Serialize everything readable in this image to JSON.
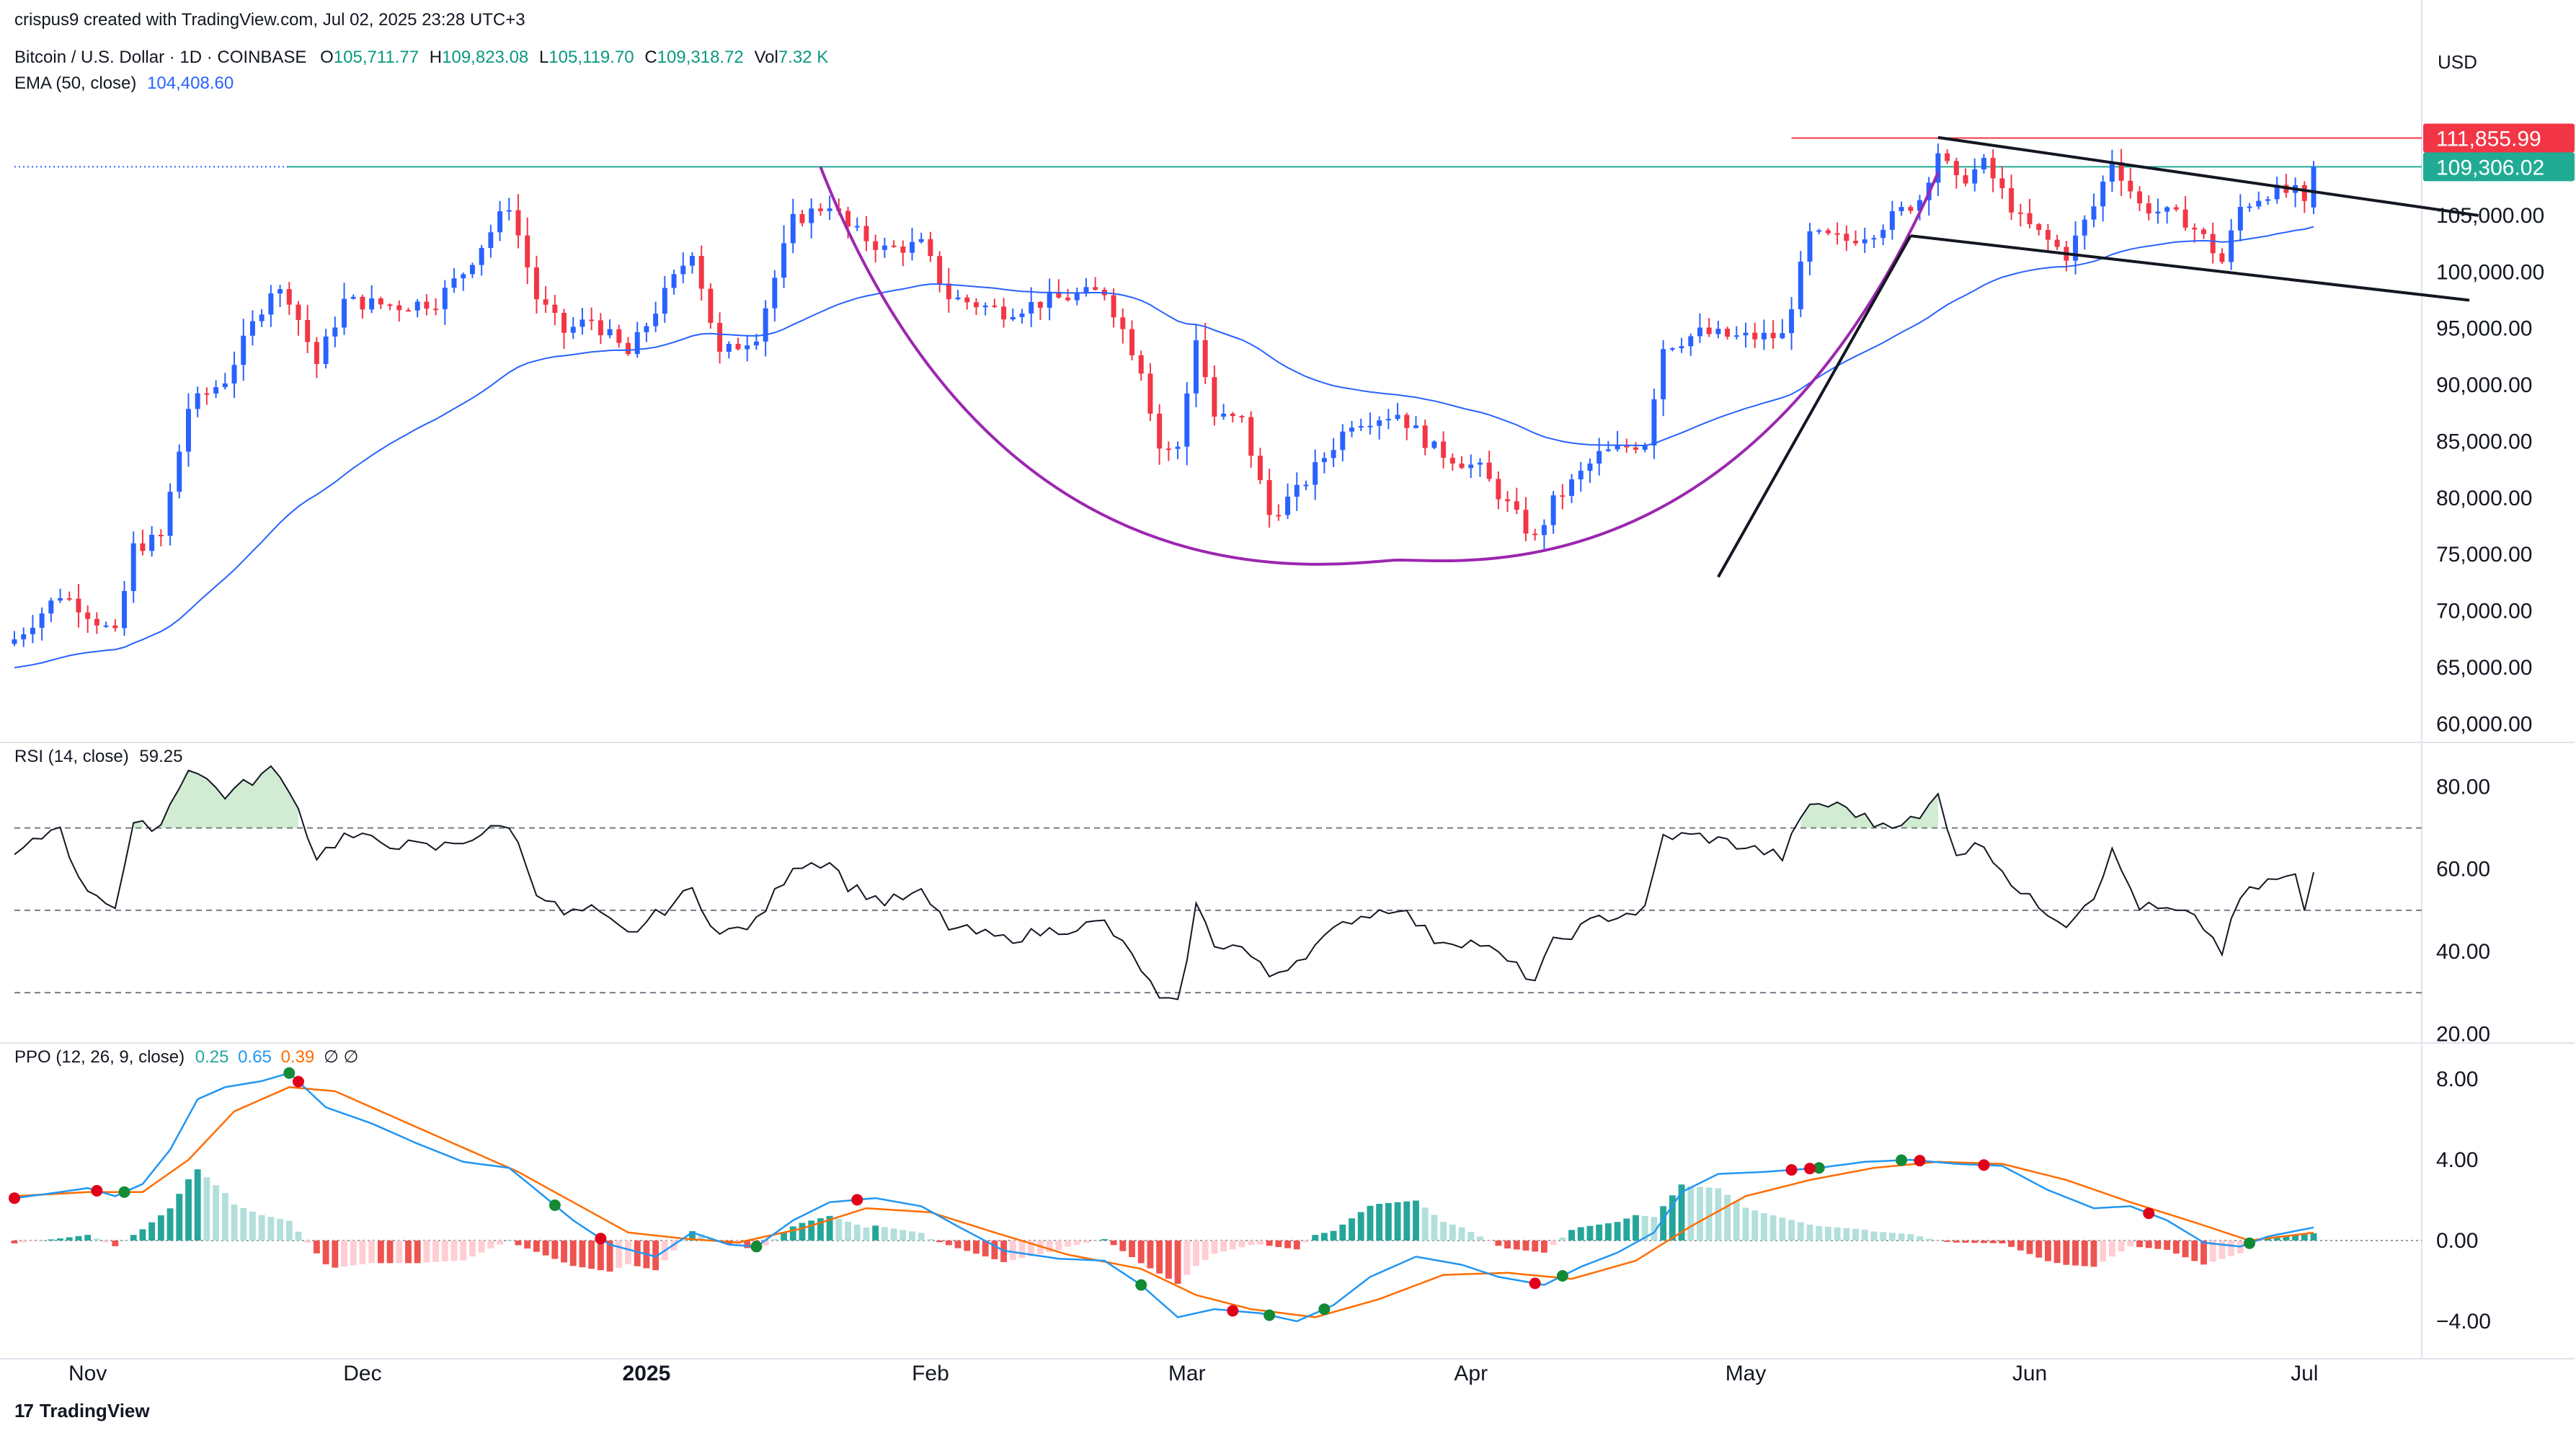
{
  "header": {
    "created": "crispus9 created with TradingView.com, Jul 02, 2025 23:28 UTC+3",
    "symbol": "Bitcoin / U.S. Dollar · 1D · COINBASE",
    "open_label": "O",
    "open": "105,711.77",
    "high_label": "H",
    "high": "109,823.08",
    "low_label": "L",
    "low": "105,119.70",
    "close_label": "C",
    "close": "109,318.72",
    "vol_label": "Vol",
    "vol": "7.32 K",
    "ema_label": "EMA (50, close)",
    "ema_value": "104,408.60",
    "rsi_label": "RSI (14, close)",
    "rsi_value": "59.25",
    "ppo_label": "PPO (12, 26, 9, close)",
    "ppo_v1": "0.25",
    "ppo_v2": "0.65",
    "ppo_v3": "0.39",
    "ppo_na": "∅ ∅"
  },
  "currency": "USD",
  "price_badges": {
    "high_line": "111,855.99",
    "last_price": "109,306.02"
  },
  "colors": {
    "up": "#2962ff",
    "down": "#f23645",
    "ema": "#2962ff",
    "cup": "#9c27b0",
    "pattern": "#131722",
    "hline": "#f23645",
    "last_price_line": "#22ab94",
    "badge_high": "#f23645",
    "badge_last": "#22ab94",
    "rsi_fill": "#4caf50",
    "ppo_line": "#2196f3",
    "ppo_signal": "#ff6d00",
    "hist_up_strong": "#26a69a",
    "hist_up_weak": "#b2dfdb",
    "hist_down_strong": "#ef5350",
    "hist_down_weak": "#ffcdd2",
    "cross_up": "#138a36",
    "cross_down": "#e0001a"
  },
  "footer": {
    "brand": "TradingView"
  },
  "chart_data": [
    {
      "type": "candlestick",
      "title": "Bitcoin / U.S. Dollar · 1D · COINBASE",
      "x_labels": [
        {
          "label": "Nov",
          "date": "2024-11-01"
        },
        {
          "label": "Dec",
          "date": "2024-12-01"
        },
        {
          "label": "2025",
          "date": "2025-01-01"
        },
        {
          "label": "Feb",
          "date": "2025-02-01"
        },
        {
          "label": "Mar",
          "date": "2025-03-01"
        },
        {
          "label": "Apr",
          "date": "2025-04-01"
        },
        {
          "label": "May",
          "date": "2025-05-01"
        },
        {
          "label": "Jun",
          "date": "2025-06-01"
        },
        {
          "label": "Jul",
          "date": "2025-07-01"
        }
      ],
      "x_range": [
        "2024-10-24",
        "2025-07-02"
      ],
      "y_ticks": [
        "60,000.00",
        "65,000.00",
        "70,000.00",
        "75,000.00",
        "80,000.00",
        "85,000.00",
        "90,000.00",
        "95,000.00",
        "100,000.00",
        "105,000.00"
      ],
      "ylim": [
        59000,
        114500
      ],
      "close_anchors": [
        [
          "2024-10-24",
          67500
        ],
        [
          "2024-10-29",
          71500
        ],
        [
          "2024-10-31",
          70500
        ],
        [
          "2024-11-04",
          67800
        ],
        [
          "2024-11-06",
          75600
        ],
        [
          "2024-11-09",
          76500
        ],
        [
          "2024-11-12",
          88000
        ],
        [
          "2024-11-16",
          90500
        ],
        [
          "2024-11-21",
          98500
        ],
        [
          "2024-11-23",
          97800
        ],
        [
          "2024-11-26",
          91900
        ],
        [
          "2024-11-29",
          97400
        ],
        [
          "2024-12-05",
          97000
        ],
        [
          "2024-12-09",
          97400
        ],
        [
          "2024-12-12",
          100000
        ],
        [
          "2024-12-17",
          106000
        ],
        [
          "2024-12-20",
          97700
        ],
        [
          "2024-12-23",
          94700
        ],
        [
          "2024-12-26",
          95800
        ],
        [
          "2024-12-30",
          92700
        ],
        [
          "2025-01-06",
          102000
        ],
        [
          "2025-01-09",
          92600
        ],
        [
          "2025-01-13",
          94500
        ],
        [
          "2025-01-17",
          104500
        ],
        [
          "2025-01-21",
          106100
        ],
        [
          "2025-01-23",
          103900
        ],
        [
          "2025-01-27",
          102000
        ],
        [
          "2025-01-31",
          102400
        ],
        [
          "2025-02-03",
          97800
        ],
        [
          "2025-02-09",
          96500
        ],
        [
          "2025-02-14",
          97500
        ],
        [
          "2025-02-20",
          98300
        ],
        [
          "2025-02-24",
          91500
        ],
        [
          "2025-02-26",
          84500
        ],
        [
          "2025-02-28",
          84300
        ],
        [
          "2025-03-02",
          94300
        ],
        [
          "2025-03-04",
          87200
        ],
        [
          "2025-03-07",
          86800
        ],
        [
          "2025-03-10",
          78500
        ],
        [
          "2025-03-13",
          80500
        ],
        [
          "2025-03-19",
          86800
        ],
        [
          "2025-03-24",
          87500
        ],
        [
          "2025-03-28",
          84300
        ],
        [
          "2025-04-02",
          82500
        ],
        [
          "2025-04-06",
          78300
        ],
        [
          "2025-04-08",
          76300
        ],
        [
          "2025-04-10",
          79600
        ],
        [
          "2025-04-15",
          83800
        ],
        [
          "2025-04-20",
          85000
        ],
        [
          "2025-04-22",
          93400
        ],
        [
          "2025-04-26",
          94600
        ],
        [
          "2025-04-30",
          94200
        ],
        [
          "2025-05-05",
          94300
        ],
        [
          "2025-05-08",
          103200
        ],
        [
          "2025-05-12",
          102800
        ],
        [
          "2025-05-15",
          103700
        ],
        [
          "2025-05-20",
          106500
        ],
        [
          "2025-05-22",
          110700
        ],
        [
          "2025-05-24",
          107900
        ],
        [
          "2025-05-27",
          109500
        ],
        [
          "2025-05-31",
          104600
        ],
        [
          "2025-06-05",
          101500
        ],
        [
          "2025-06-08",
          105800
        ],
        [
          "2025-06-10",
          110000
        ],
        [
          "2025-06-13",
          105900
        ],
        [
          "2025-06-18",
          104600
        ],
        [
          "2025-06-20",
          103000
        ],
        [
          "2025-06-22",
          100900
        ],
        [
          "2025-06-24",
          105700
        ],
        [
          "2025-06-27",
          107100
        ],
        [
          "2025-06-30",
          107000
        ],
        [
          "2025-07-01",
          105700
        ],
        [
          "2025-07-02",
          109300
        ]
      ],
      "last_candle": {
        "open": 105711.77,
        "high": 109823.08,
        "low": 105119.7,
        "close": 109318.72
      },
      "ema_50_last": 104408.6,
      "horizontal_lines": [
        111855.99,
        109306.02
      ],
      "annotations": {
        "cup_arc": {
          "start": [
            "2025-01-20",
            109300
          ],
          "bottom": [
            "2025-03-24",
            74500
          ],
          "end": [
            "2025-05-22",
            108800
          ]
        },
        "channel_upper": [
          [
            "2025-05-22",
            111900
          ],
          [
            "2025-07-20",
            105000
          ]
        ],
        "channel_lower": [
          [
            "2025-05-19",
            103200
          ],
          [
            "2025-07-19",
            97500
          ]
        ],
        "flagpole": [
          [
            "2025-04-28",
            73000
          ],
          [
            "2025-05-19",
            103200
          ]
        ]
      }
    },
    {
      "type": "line",
      "title": "RSI (14, close)",
      "y_ticks": [
        "20.00",
        "40.00",
        "60.00",
        "80.00"
      ],
      "ylim": [
        19,
        89
      ],
      "bands": [
        30,
        50,
        70
      ],
      "last_value": 59.25,
      "anchors": [
        [
          "2024-10-24",
          63
        ],
        [
          "2024-10-29",
          71
        ],
        [
          "2024-10-31",
          57
        ],
        [
          "2024-11-04",
          51
        ],
        [
          "2024-11-06",
          70
        ],
        [
          "2024-11-09",
          71
        ],
        [
          "2024-11-12",
          85
        ],
        [
          "2024-11-16",
          78
        ],
        [
          "2024-11-21",
          84
        ],
        [
          "2024-11-23",
          80
        ],
        [
          "2024-11-26",
          63
        ],
        [
          "2024-11-29",
          68
        ],
        [
          "2024-12-05",
          66
        ],
        [
          "2024-12-09",
          65
        ],
        [
          "2024-12-12",
          67
        ],
        [
          "2024-12-17",
          71
        ],
        [
          "2024-12-20",
          55
        ],
        [
          "2024-12-23",
          49
        ],
        [
          "2024-12-26",
          50
        ],
        [
          "2024-12-30",
          44
        ],
        [
          "2025-01-06",
          55
        ],
        [
          "2025-01-09",
          44
        ],
        [
          "2025-01-13",
          47
        ],
        [
          "2025-01-17",
          61
        ],
        [
          "2025-01-21",
          62
        ],
        [
          "2025-01-23",
          56
        ],
        [
          "2025-01-27",
          52
        ],
        [
          "2025-01-31",
          54
        ],
        [
          "2025-02-03",
          46
        ],
        [
          "2025-02-09",
          43
        ],
        [
          "2025-02-14",
          45
        ],
        [
          "2025-02-20",
          47
        ],
        [
          "2025-02-24",
          36
        ],
        [
          "2025-02-26",
          28
        ],
        [
          "2025-02-28",
          27
        ],
        [
          "2025-03-02",
          51
        ],
        [
          "2025-03-04",
          42
        ],
        [
          "2025-03-07",
          41
        ],
        [
          "2025-03-10",
          34
        ],
        [
          "2025-03-13",
          38
        ],
        [
          "2025-03-19",
          48
        ],
        [
          "2025-03-24",
          51
        ],
        [
          "2025-03-28",
          43
        ],
        [
          "2025-04-02",
          42
        ],
        [
          "2025-04-06",
          36
        ],
        [
          "2025-04-08",
          33
        ],
        [
          "2025-04-10",
          42
        ],
        [
          "2025-04-15",
          48
        ],
        [
          "2025-04-20",
          50
        ],
        [
          "2025-04-22",
          68
        ],
        [
          "2025-04-26",
          68
        ],
        [
          "2025-04-30",
          66
        ],
        [
          "2025-05-05",
          63
        ],
        [
          "2025-05-08",
          76
        ],
        [
          "2025-05-12",
          75
        ],
        [
          "2025-05-15",
          71
        ],
        [
          "2025-05-20",
          72
        ],
        [
          "2025-05-22",
          78
        ],
        [
          "2025-05-24",
          64
        ],
        [
          "2025-05-27",
          66
        ],
        [
          "2025-05-31",
          54
        ],
        [
          "2025-06-05",
          47
        ],
        [
          "2025-06-08",
          54
        ],
        [
          "2025-06-10",
          64
        ],
        [
          "2025-06-13",
          51
        ],
        [
          "2025-06-18",
          49
        ],
        [
          "2025-06-20",
          46
        ],
        [
          "2025-06-22",
          40
        ],
        [
          "2025-06-24",
          53
        ],
        [
          "2025-06-27",
          57
        ],
        [
          "2025-06-30",
          58
        ],
        [
          "2025-07-01",
          50
        ],
        [
          "2025-07-02",
          59.25
        ]
      ]
    },
    {
      "type": "line",
      "title": "PPO (12, 26, 9, close)",
      "y_ticks": [
        "−4.00",
        "0.00",
        "4.00",
        "8.00"
      ],
      "ylim": [
        -5.5,
        9.5
      ],
      "series": [
        {
          "name": "0.25",
          "role": "histogram"
        },
        {
          "name": "0.65",
          "role": "ppo"
        },
        {
          "name": "0.39",
          "role": "signal"
        }
      ],
      "ppo_anchors": [
        [
          "2024-10-24",
          2.1
        ],
        [
          "2024-10-29",
          2.4
        ],
        [
          "2024-11-01",
          2.6
        ],
        [
          "2024-11-04",
          2.2
        ],
        [
          "2024-11-07",
          2.8
        ],
        [
          "2024-11-10",
          4.5
        ],
        [
          "2024-11-13",
          7.0
        ],
        [
          "2024-11-16",
          7.6
        ],
        [
          "2024-11-20",
          7.9
        ],
        [
          "2024-11-23",
          8.3
        ],
        [
          "2024-11-27",
          6.6
        ],
        [
          "2024-12-02",
          5.8
        ],
        [
          "2024-12-07",
          4.8
        ],
        [
          "2024-12-12",
          3.9
        ],
        [
          "2024-12-17",
          3.6
        ],
        [
          "2024-12-20",
          2.5
        ],
        [
          "2024-12-24",
          1.0
        ],
        [
          "2024-12-28",
          -0.2
        ],
        [
          "2025-01-02",
          -0.8
        ],
        [
          "2025-01-06",
          0.4
        ],
        [
          "2025-01-10",
          -0.2
        ],
        [
          "2025-01-13",
          -0.3
        ],
        [
          "2025-01-17",
          1.0
        ],
        [
          "2025-01-21",
          1.9
        ],
        [
          "2025-01-26",
          2.1
        ],
        [
          "2025-01-31",
          1.7
        ],
        [
          "2025-02-04",
          0.7
        ],
        [
          "2025-02-09",
          -0.5
        ],
        [
          "2025-02-15",
          -0.9
        ],
        [
          "2025-02-20",
          -1.0
        ],
        [
          "2025-02-24",
          -2.2
        ],
        [
          "2025-02-28",
          -3.8
        ],
        [
          "2025-03-04",
          -3.4
        ],
        [
          "2025-03-09",
          -3.6
        ],
        [
          "2025-03-13",
          -4.0
        ],
        [
          "2025-03-17",
          -3.2
        ],
        [
          "2025-03-21",
          -1.8
        ],
        [
          "2025-03-26",
          -0.8
        ],
        [
          "2025-03-31",
          -1.2
        ],
        [
          "2025-04-04",
          -1.8
        ],
        [
          "2025-04-09",
          -2.2
        ],
        [
          "2025-04-13",
          -1.3
        ],
        [
          "2025-04-17",
          -0.6
        ],
        [
          "2025-04-21",
          0.4
        ],
        [
          "2025-04-24",
          2.4
        ],
        [
          "2025-04-28",
          3.3
        ],
        [
          "2025-05-03",
          3.4
        ],
        [
          "2025-05-09",
          3.6
        ],
        [
          "2025-05-14",
          3.9
        ],
        [
          "2025-05-19",
          4.0
        ],
        [
          "2025-05-24",
          3.8
        ],
        [
          "2025-05-29",
          3.7
        ],
        [
          "2025-06-03",
          2.5
        ],
        [
          "2025-06-08",
          1.6
        ],
        [
          "2025-06-12",
          1.7
        ],
        [
          "2025-06-16",
          1.0
        ],
        [
          "2025-06-20",
          -0.1
        ],
        [
          "2025-06-24",
          -0.3
        ],
        [
          "2025-06-27",
          0.2
        ],
        [
          "2025-07-02",
          0.65
        ]
      ],
      "signal_anchors": [
        [
          "2024-10-24",
          2.2
        ],
        [
          "2024-11-01",
          2.4
        ],
        [
          "2024-11-07",
          2.4
        ],
        [
          "2024-11-12",
          4.0
        ],
        [
          "2024-11-17",
          6.4
        ],
        [
          "2024-11-23",
          7.6
        ],
        [
          "2024-11-28",
          7.4
        ],
        [
          "2024-12-05",
          6.0
        ],
        [
          "2024-12-12",
          4.6
        ],
        [
          "2024-12-18",
          3.4
        ],
        [
          "2024-12-24",
          1.9
        ],
        [
          "2024-12-30",
          0.4
        ],
        [
          "2025-01-05",
          0.1
        ],
        [
          "2025-01-11",
          -0.1
        ],
        [
          "2025-01-18",
          0.6
        ],
        [
          "2025-01-25",
          1.6
        ],
        [
          "2025-02-01",
          1.4
        ],
        [
          "2025-02-08",
          0.4
        ],
        [
          "2025-02-16",
          -0.7
        ],
        [
          "2025-02-24",
          -1.4
        ],
        [
          "2025-03-02",
          -2.7
        ],
        [
          "2025-03-08",
          -3.4
        ],
        [
          "2025-03-15",
          -3.8
        ],
        [
          "2025-03-22",
          -2.9
        ],
        [
          "2025-03-29",
          -1.7
        ],
        [
          "2025-04-05",
          -1.6
        ],
        [
          "2025-04-12",
          -1.9
        ],
        [
          "2025-04-19",
          -1.0
        ],
        [
          "2025-04-25",
          0.7
        ],
        [
          "2025-05-01",
          2.2
        ],
        [
          "2025-05-08",
          3.0
        ],
        [
          "2025-05-15",
          3.6
        ],
        [
          "2025-05-22",
          3.9
        ],
        [
          "2025-05-29",
          3.8
        ],
        [
          "2025-06-05",
          3.0
        ],
        [
          "2025-06-12",
          1.9
        ],
        [
          "2025-06-19",
          0.9
        ],
        [
          "2025-06-25",
          0.0
        ],
        [
          "2025-07-02",
          0.39
        ]
      ],
      "cross_markers_up": [
        "2024-11-05",
        "2024-11-23",
        "2024-12-22",
        "2025-01-13",
        "2025-02-24",
        "2025-03-10",
        "2025-03-16",
        "2025-04-11",
        "2025-05-09",
        "2025-05-18",
        "2025-06-25"
      ],
      "cross_markers_down": [
        "2024-10-24",
        "2024-11-02",
        "2024-11-24",
        "2024-12-27",
        "2025-01-24",
        "2025-03-06",
        "2025-04-08",
        "2025-05-06",
        "2025-05-08",
        "2025-05-20",
        "2025-05-27",
        "2025-06-14"
      ]
    }
  ]
}
